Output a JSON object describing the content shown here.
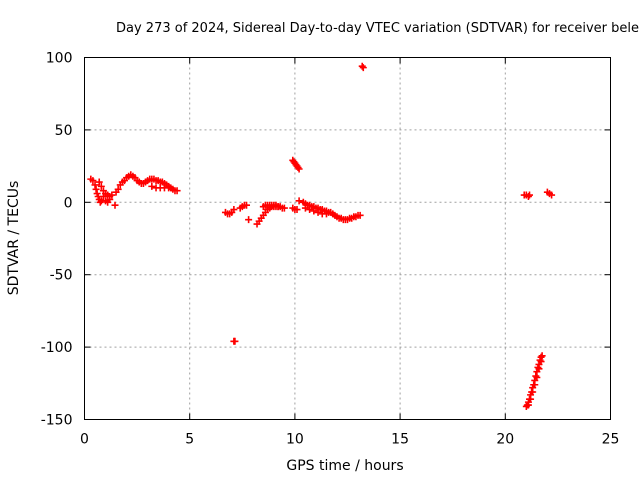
{
  "chart_data": {
    "type": "scatter",
    "title": "Day 273 of 2024, Sidereal Day-to-day VTEC variation (SDTVAR) for receiver bele",
    "xlabel": "GPS time / hours",
    "ylabel": "SDTVAR / TECUs",
    "xlim": [
      0,
      25
    ],
    "ylim": [
      -150,
      100
    ],
    "xticks": [
      0,
      5,
      10,
      15,
      20,
      25
    ],
    "yticks": [
      -150,
      -100,
      -50,
      0,
      50,
      100
    ],
    "xtick_labels": [
      "0",
      "5",
      "10",
      "15",
      "20",
      "25"
    ],
    "ytick_labels": [
      "-150",
      "-100",
      "-50",
      "0",
      "50",
      "100"
    ],
    "grid": true,
    "marker": "plus",
    "color": "#ff0000",
    "series": [
      {
        "name": "SDTVAR",
        "points": [
          [
            0.3,
            16
          ],
          [
            0.4,
            15
          ],
          [
            0.5,
            12
          ],
          [
            0.55,
            9
          ],
          [
            0.6,
            6
          ],
          [
            0.65,
            4
          ],
          [
            0.7,
            2
          ],
          [
            0.75,
            0
          ],
          [
            0.8,
            1
          ],
          [
            0.9,
            4
          ],
          [
            1.0,
            1
          ],
          [
            1.1,
            0
          ],
          [
            1.2,
            2
          ],
          [
            0.7,
            14
          ],
          [
            0.8,
            11
          ],
          [
            0.9,
            8
          ],
          [
            1.0,
            6
          ],
          [
            1.1,
            5
          ],
          [
            1.2,
            4
          ],
          [
            1.3,
            5
          ],
          [
            1.45,
            -2
          ],
          [
            1.5,
            7
          ],
          [
            1.6,
            9
          ],
          [
            1.7,
            12
          ],
          [
            1.8,
            14
          ],
          [
            1.9,
            15
          ],
          [
            2.0,
            17
          ],
          [
            2.1,
            18
          ],
          [
            2.2,
            19
          ],
          [
            2.3,
            18
          ],
          [
            2.4,
            17
          ],
          [
            2.5,
            15
          ],
          [
            2.6,
            14
          ],
          [
            2.7,
            13
          ],
          [
            2.8,
            13
          ],
          [
            2.9,
            14
          ],
          [
            3.0,
            15
          ],
          [
            3.1,
            16
          ],
          [
            3.2,
            16
          ],
          [
            3.3,
            16
          ],
          [
            3.4,
            15
          ],
          [
            3.5,
            15
          ],
          [
            3.6,
            14
          ],
          [
            3.7,
            14
          ],
          [
            3.8,
            13
          ],
          [
            3.9,
            12
          ],
          [
            4.0,
            11
          ],
          [
            4.1,
            10
          ],
          [
            4.2,
            9
          ],
          [
            4.3,
            8
          ],
          [
            4.4,
            8
          ],
          [
            3.2,
            11
          ],
          [
            3.4,
            10
          ],
          [
            3.6,
            10
          ],
          [
            3.8,
            10
          ],
          [
            4.0,
            10
          ],
          [
            6.7,
            -7
          ],
          [
            6.8,
            -8
          ],
          [
            6.9,
            -8
          ],
          [
            7.0,
            -7
          ],
          [
            7.1,
            -5
          ],
          [
            7.4,
            -4
          ],
          [
            7.5,
            -3
          ],
          [
            7.6,
            -2
          ],
          [
            7.7,
            -2
          ],
          [
            7.1,
            -96
          ],
          [
            7.15,
            -96
          ],
          [
            7.8,
            -12
          ],
          [
            8.2,
            -15
          ],
          [
            8.3,
            -13
          ],
          [
            8.4,
            -11
          ],
          [
            8.5,
            -9
          ],
          [
            8.6,
            -7
          ],
          [
            8.7,
            -5
          ],
          [
            8.8,
            -4
          ],
          [
            8.9,
            -3
          ],
          [
            9.0,
            -3
          ],
          [
            9.1,
            -3
          ],
          [
            9.2,
            -3
          ],
          [
            9.3,
            -3
          ],
          [
            8.5,
            -3
          ],
          [
            8.6,
            -2
          ],
          [
            8.7,
            -2
          ],
          [
            8.8,
            -2
          ],
          [
            8.9,
            -2
          ],
          [
            9.0,
            -2
          ],
          [
            9.1,
            -2
          ],
          [
            9.2,
            -3
          ],
          [
            9.4,
            -4
          ],
          [
            9.5,
            -4
          ],
          [
            9.9,
            -4
          ],
          [
            10.0,
            -5
          ],
          [
            10.1,
            -5
          ],
          [
            9.9,
            29
          ],
          [
            9.95,
            28
          ],
          [
            10.0,
            27
          ],
          [
            10.05,
            26
          ],
          [
            10.1,
            25
          ],
          [
            10.15,
            24
          ],
          [
            10.2,
            23
          ],
          [
            10.2,
            1
          ],
          [
            10.4,
            0
          ],
          [
            10.5,
            -1
          ],
          [
            10.6,
            -2
          ],
          [
            10.7,
            -2
          ],
          [
            10.8,
            -3
          ],
          [
            10.9,
            -3
          ],
          [
            11.0,
            -4
          ],
          [
            11.1,
            -4
          ],
          [
            11.2,
            -5
          ],
          [
            11.3,
            -5
          ],
          [
            11.4,
            -6
          ],
          [
            11.5,
            -6
          ],
          [
            11.6,
            -7
          ],
          [
            11.7,
            -7
          ],
          [
            11.8,
            -8
          ],
          [
            11.9,
            -9
          ],
          [
            12.0,
            -10
          ],
          [
            12.1,
            -11
          ],
          [
            12.2,
            -11
          ],
          [
            12.3,
            -12
          ],
          [
            12.4,
            -12
          ],
          [
            12.5,
            -12
          ],
          [
            12.6,
            -11
          ],
          [
            12.7,
            -11
          ],
          [
            12.8,
            -10
          ],
          [
            12.9,
            -10
          ],
          [
            13.0,
            -9
          ],
          [
            13.1,
            -9
          ],
          [
            10.5,
            -4
          ],
          [
            10.7,
            -5
          ],
          [
            10.9,
            -6
          ],
          [
            11.1,
            -7
          ],
          [
            11.3,
            -8
          ],
          [
            11.5,
            -8
          ],
          [
            13.2,
            94
          ],
          [
            13.25,
            93
          ],
          [
            20.9,
            5
          ],
          [
            21.0,
            5
          ],
          [
            21.1,
            4
          ],
          [
            21.15,
            5
          ],
          [
            22.0,
            7
          ],
          [
            22.1,
            6
          ],
          [
            22.2,
            5
          ],
          [
            21.0,
            -141
          ],
          [
            21.05,
            -140
          ],
          [
            21.1,
            -138
          ],
          [
            21.15,
            -136
          ],
          [
            21.2,
            -133
          ],
          [
            21.25,
            -131
          ],
          [
            21.3,
            -128
          ],
          [
            21.35,
            -126
          ],
          [
            21.4,
            -123
          ],
          [
            21.45,
            -120
          ],
          [
            21.5,
            -117
          ],
          [
            21.55,
            -114
          ],
          [
            21.6,
            -112
          ],
          [
            21.65,
            -109
          ],
          [
            21.7,
            -107
          ],
          [
            21.75,
            -106
          ],
          [
            21.1,
            -140
          ],
          [
            21.2,
            -136
          ],
          [
            21.3,
            -131
          ],
          [
            21.4,
            -126
          ],
          [
            21.5,
            -121
          ],
          [
            21.6,
            -115
          ],
          [
            21.7,
            -110
          ]
        ]
      }
    ]
  }
}
